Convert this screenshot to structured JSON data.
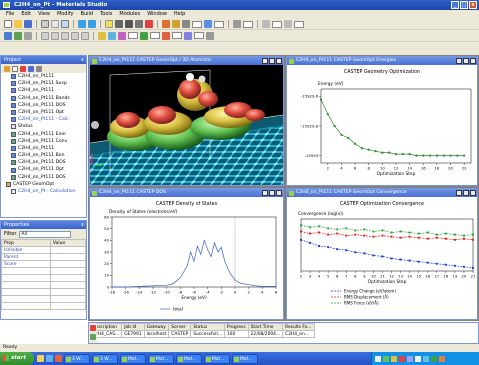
{
  "app": {
    "title": "C2H4_on_Pt - Materials Studio"
  },
  "menu": [
    "File",
    "Edit",
    "View",
    "Modify",
    "Build",
    "Tools",
    "Modules",
    "Window",
    "Help"
  ],
  "project": {
    "title": "Project",
    "tree": [
      {
        "label": "C2H4_on_Pt111",
        "kind": "structure"
      },
      {
        "label": "C2H4_on_Pt111 Susp",
        "kind": "structure"
      },
      {
        "label": "C2H4_on_Pt111",
        "kind": "structure"
      },
      {
        "label": "C2H4_on_Pt111 Bands",
        "kind": "structure"
      },
      {
        "label": "C2H4_on_Pt111 DOS",
        "kind": "structure"
      },
      {
        "label": "C2H4_on_Pt111 Opt",
        "kind": "structure"
      },
      {
        "label": "C2H4_on_Pt111 - Calc",
        "kind": "structure"
      },
      {
        "label": "Status",
        "kind": "doc"
      },
      {
        "label": "C2H4_on_Pt111 Ener",
        "kind": "chart"
      },
      {
        "label": "C2H4_on_Pt111 Conv",
        "kind": "chart"
      },
      {
        "label": "C2H4_on_Pt111",
        "kind": "structure"
      },
      {
        "label": "C2H4_on_Pt111 Bon",
        "kind": "structure"
      },
      {
        "label": "C2H4_on_Pt111 DOS",
        "kind": "chart"
      },
      {
        "label": "C2H4_on_Pt111 Opt",
        "kind": "structure"
      },
      {
        "label": "C2H4_on_Pt111 DOS",
        "kind": "chart"
      },
      {
        "label": "CASTEP GeomOpt",
        "kind": "folder"
      },
      {
        "label": "C2H4_on_Pt - Calculation",
        "kind": "doc"
      }
    ]
  },
  "properties": {
    "title": "Properties",
    "filter_label": "Filter",
    "filter_value": "All",
    "headers": [
      "Prop",
      "Value"
    ],
    "rows": [
      [
        "IsVisible",
        ""
      ],
      [
        "Parent",
        ""
      ],
      [
        "Score",
        ""
      ]
    ]
  },
  "windows": {
    "structure": {
      "title": "C2H4_on_Pt111 CASTEP GeomOpt / 3D Atomistic"
    },
    "geometry": {
      "title": "C2H4_on_Pt111 CASTEP GeomOpt Energies"
    },
    "dos": {
      "title": "C2H4_on_Pt111 CASTEP DOS"
    },
    "convergence": {
      "title": "C2H4_on_Pt111 CASTEP GeomOpt Convergence"
    }
  },
  "chart_data": [
    {
      "type": "line",
      "title": "CASTEP Geometry Optimization",
      "ylabel": "Energy (eV)",
      "xlabel": "Optimization Step",
      "x_ticks": [
        2,
        4,
        6,
        8,
        10,
        12,
        14,
        16,
        18,
        20,
        22
      ],
      "y_ticks": [
        -15929.6,
        -15929.8,
        -15930.0
      ],
      "ylim": [
        -15930.05,
        -15929.55
      ],
      "xlim": [
        1,
        23
      ],
      "series": [
        {
          "values": [
            [
              1,
              -15929.62
            ],
            [
              2,
              -15929.72
            ],
            [
              3,
              -15929.8
            ],
            [
              4,
              -15929.86
            ],
            [
              5,
              -15929.88
            ],
            [
              6,
              -15929.92
            ],
            [
              7,
              -15929.95
            ],
            [
              8,
              -15929.96
            ],
            [
              9,
              -15929.97
            ],
            [
              10,
              -15929.98
            ],
            [
              11,
              -15929.98
            ],
            [
              12,
              -15929.99
            ],
            [
              13,
              -15929.99
            ],
            [
              14,
              -15929.99
            ],
            [
              15,
              -15930.0
            ],
            [
              16,
              -15930.0
            ],
            [
              17,
              -15930.0
            ],
            [
              18,
              -15930.0
            ],
            [
              19,
              -15930.0
            ],
            [
              20,
              -15930.0
            ],
            [
              21,
              -15930.0
            ],
            [
              22,
              -15930.0
            ]
          ]
        }
      ],
      "color": "#2e8b2e"
    },
    {
      "type": "line",
      "title": "CASTEP Density of States",
      "ylabel": "Density of States (electrons/eV)",
      "xlabel": "Energy (eV)",
      "x_ticks": [
        -18,
        -16,
        -14,
        -12,
        -10,
        -8,
        -6,
        -4,
        -2,
        0,
        2,
        4,
        6
      ],
      "y_ticks": [
        0,
        10,
        20,
        30,
        40,
        50,
        60
      ],
      "xlim": [
        -18,
        6
      ],
      "ylim": [
        0,
        60
      ],
      "fermi_line": 0,
      "legend": "total",
      "series": [
        {
          "name": "total",
          "values": [
            [
              -18,
              0
            ],
            [
              -16,
              0
            ],
            [
              -14,
              0.5
            ],
            [
              -12,
              1
            ],
            [
              -10,
              1.5
            ],
            [
              -9,
              3
            ],
            [
              -8,
              8
            ],
            [
              -7,
              18
            ],
            [
              -6.5,
              30
            ],
            [
              -6,
              22
            ],
            [
              -5.5,
              35
            ],
            [
              -5,
              28
            ],
            [
              -4.5,
              40
            ],
            [
              -4,
              32
            ],
            [
              -3.5,
              26
            ],
            [
              -3,
              38
            ],
            [
              -2.5,
              30
            ],
            [
              -2,
              34
            ],
            [
              -1.5,
              22
            ],
            [
              -1,
              15
            ],
            [
              -0.5,
              10
            ],
            [
              0,
              6
            ],
            [
              0.5,
              4
            ],
            [
              1,
              3
            ],
            [
              2,
              2
            ],
            [
              3,
              1
            ],
            [
              4,
              0.5
            ],
            [
              5,
              0.5
            ],
            [
              6,
              0.5
            ]
          ]
        }
      ],
      "color": "#3a5fd0"
    },
    {
      "type": "line",
      "title": "CASTEP Optimization Convergence",
      "ylabel": "Convergence (log(x))",
      "xlabel": "Optimization Step",
      "x_ticks": [
        2,
        3,
        4,
        5,
        6,
        7,
        8,
        9,
        10,
        11,
        12,
        13,
        14,
        15,
        16,
        17,
        18,
        19,
        20,
        21
      ],
      "y_ticks": [],
      "legend_entries": [
        "Energy Change (eV/atom)",
        "RMS Displacement (Å)",
        "RMS Force (eV/Å)"
      ],
      "series": [
        {
          "name": "Energy Change (eV/atom)",
          "color": "#1f3fd0",
          "values": [
            [
              2,
              -2.0
            ],
            [
              3,
              -2.3
            ],
            [
              4,
              -2.6
            ],
            [
              5,
              -2.7
            ],
            [
              6,
              -2.9
            ],
            [
              7,
              -3.0
            ],
            [
              8,
              -3.2
            ],
            [
              9,
              -3.3
            ],
            [
              10,
              -3.5
            ],
            [
              11,
              -3.6
            ],
            [
              12,
              -3.8
            ],
            [
              13,
              -3.9
            ],
            [
              14,
              -4.0
            ],
            [
              15,
              -4.1
            ],
            [
              16,
              -4.2
            ],
            [
              17,
              -4.3
            ],
            [
              18,
              -4.4
            ],
            [
              19,
              -4.5
            ],
            [
              20,
              -4.6
            ],
            [
              21,
              -4.7
            ]
          ]
        },
        {
          "name": "RMS Displacement (Å)",
          "color": "#e02020",
          "values": [
            [
              2,
              -1.2
            ],
            [
              3,
              -1.4
            ],
            [
              4,
              -1.3
            ],
            [
              5,
              -1.5
            ],
            [
              6,
              -1.4
            ],
            [
              7,
              -1.6
            ],
            [
              8,
              -1.5
            ],
            [
              9,
              -1.6
            ],
            [
              10,
              -1.7
            ],
            [
              11,
              -1.6
            ],
            [
              12,
              -1.7
            ],
            [
              13,
              -1.8
            ],
            [
              14,
              -1.7
            ],
            [
              15,
              -1.8
            ],
            [
              16,
              -1.9
            ],
            [
              17,
              -1.8
            ],
            [
              18,
              -1.9
            ],
            [
              19,
              -2.0
            ],
            [
              20,
              -1.9
            ],
            [
              21,
              -2.0
            ]
          ]
        },
        {
          "name": "RMS Force (eV/Å)",
          "color": "#2eaa3a",
          "values": [
            [
              2,
              -0.6
            ],
            [
              3,
              -0.8
            ],
            [
              4,
              -0.7
            ],
            [
              5,
              -0.9
            ],
            [
              6,
              -1.0
            ],
            [
              7,
              -0.9
            ],
            [
              8,
              -1.1
            ],
            [
              9,
              -1.0
            ],
            [
              10,
              -1.2
            ],
            [
              11,
              -1.1
            ],
            [
              12,
              -1.3
            ],
            [
              13,
              -1.2
            ],
            [
              14,
              -1.3
            ],
            [
              15,
              -1.4
            ],
            [
              16,
              -1.3
            ],
            [
              17,
              -1.5
            ],
            [
              18,
              -1.4
            ],
            [
              19,
              -1.5
            ],
            [
              20,
              -1.6
            ],
            [
              21,
              -1.5
            ]
          ]
        }
      ],
      "ylim": [
        -5,
        0
      ]
    }
  ],
  "jobs": {
    "headers": [
      "Description",
      "Job Id",
      "Gateway",
      "Server",
      "Status",
      "Progress",
      "Start Time",
      "Results Fo..."
    ],
    "rows": [
      [
        "C2H4_CAS...",
        "GE7991",
        "localhost",
        "CASTEP",
        "Successfull...",
        "100",
        "22/08/2004...",
        "C2H4_on..."
      ]
    ]
  },
  "status": {
    "text": "Ready"
  },
  "taskbar": {
    "start_label": "start",
    "tasks": [
      "3 W...",
      "3 W...",
      "Mat...",
      "Mat...",
      "Mat...",
      "Mat...",
      "Mat..."
    ]
  },
  "colors": {
    "accent": "#2f5fc9",
    "chrome": "#ece9d8",
    "taskbar": "#2453c6"
  }
}
